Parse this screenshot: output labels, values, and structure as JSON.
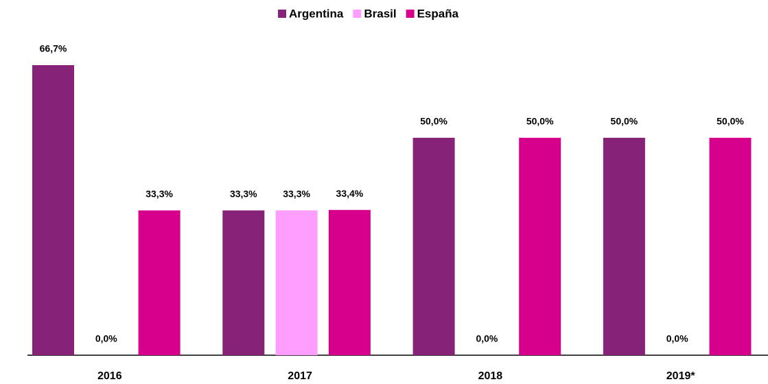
{
  "chart_data": {
    "type": "bar",
    "categories": [
      "2016",
      "2017",
      "2018",
      "2019*"
    ],
    "series": [
      {
        "name": "Argentina",
        "color": "#862378",
        "values": [
          66.7,
          33.3,
          50.0,
          50.0
        ],
        "value_labels": [
          "66,7%",
          "33,3%",
          "50,0%",
          "50,0%"
        ]
      },
      {
        "name": "Brasil",
        "color": "#ff9eff",
        "values": [
          0.0,
          33.3,
          0.0,
          0.0
        ],
        "value_labels": [
          "0,0%",
          "33,3%",
          "0,0%",
          "0,0%"
        ]
      },
      {
        "name": "España",
        "color": "#d6008d",
        "values": [
          33.3,
          33.4,
          50.0,
          50.0
        ],
        "value_labels": [
          "33,3%",
          "33,4%",
          "50,0%",
          "50,0%"
        ]
      }
    ]
  }
}
